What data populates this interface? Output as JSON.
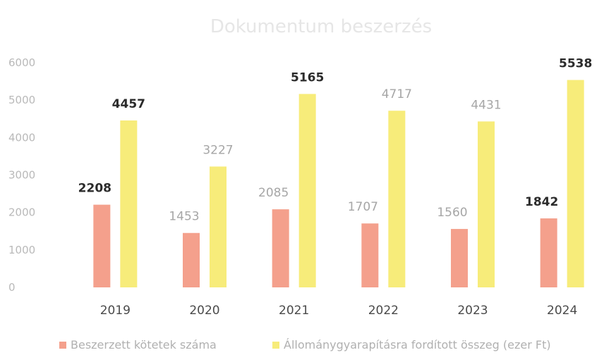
{
  "chart_data": {
    "type": "bar",
    "title": "Dokumentum beszerzés",
    "categories": [
      "2019",
      "2020",
      "2021",
      "2022",
      "2023",
      "2024"
    ],
    "series": [
      {
        "name": "Beszerzett kötetek száma",
        "values": [
          2208,
          1453,
          2085,
          1707,
          1560,
          1842
        ],
        "color": "#f4a08c"
      },
      {
        "name": "Állománygyarapításra fordított összeg (ezer Ft)",
        "values": [
          4457,
          3227,
          5165,
          4717,
          4431,
          5538
        ],
        "color": "#f7ec7a"
      }
    ],
    "yticks": [
      "0",
      "1000",
      "2000",
      "3000",
      "4000",
      "5000",
      "6000"
    ],
    "ylim": [
      0,
      6000
    ],
    "grid": false,
    "legend": "bottom",
    "bold_labels": [
      [
        true,
        false,
        false,
        false,
        false,
        true
      ],
      [
        true,
        false,
        true,
        false,
        false,
        true
      ]
    ]
  }
}
